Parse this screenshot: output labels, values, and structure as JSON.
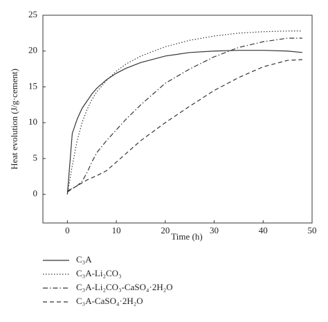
{
  "chart_data": {
    "type": "line",
    "x_label": "Time (h)",
    "y_label": "Heat evolution (J/g·cement)",
    "x": [
      0,
      1,
      2,
      3,
      4,
      5,
      6,
      8,
      10,
      12,
      15,
      20,
      25,
      30,
      35,
      40,
      45,
      48
    ],
    "series": [
      {
        "name": "C₃A",
        "color": "#333333",
        "style": "solid",
        "values": [
          0,
          8.5,
          10.5,
          12,
          13,
          14,
          14.8,
          16,
          16.9,
          17.6,
          18.4,
          19.3,
          19.8,
          20,
          20.1,
          20.1,
          20,
          19.8
        ]
      },
      {
        "name": "C₃A-Li₂CO₃",
        "color": "#333333",
        "style": "dotted",
        "values": [
          0,
          4,
          7.5,
          10,
          11.8,
          13.2,
          14.3,
          15.9,
          17.2,
          18.2,
          19.3,
          20.6,
          21.5,
          22.1,
          22.5,
          22.7,
          22.8,
          22.8
        ]
      },
      {
        "name": "C₃A-Li₂CO₃-CaSO₄·2H₂O",
        "color": "#333333",
        "style": "dashdot",
        "values": [
          0.5,
          0.8,
          1.2,
          1.8,
          3,
          4.5,
          5.8,
          7.5,
          9,
          10.5,
          12.5,
          15.5,
          17.5,
          19.2,
          20.5,
          21.3,
          21.8,
          21.8
        ]
      },
      {
        "name": "C₃A-CaSO₄·2H₂O",
        "color": "#333333",
        "style": "dashed",
        "values": [
          0.3,
          0.8,
          1.2,
          1.6,
          2,
          2.3,
          2.6,
          3.3,
          4.5,
          5.7,
          7.5,
          10,
          12.3,
          14.5,
          16.3,
          17.8,
          18.7,
          18.8
        ]
      }
    ],
    "xlim": [
      -5,
      50
    ],
    "xticks": [
      0,
      10,
      20,
      30,
      40,
      50
    ],
    "ylim": [
      -4,
      25
    ],
    "yticks": [
      0,
      5,
      10,
      15,
      20,
      25
    ]
  }
}
